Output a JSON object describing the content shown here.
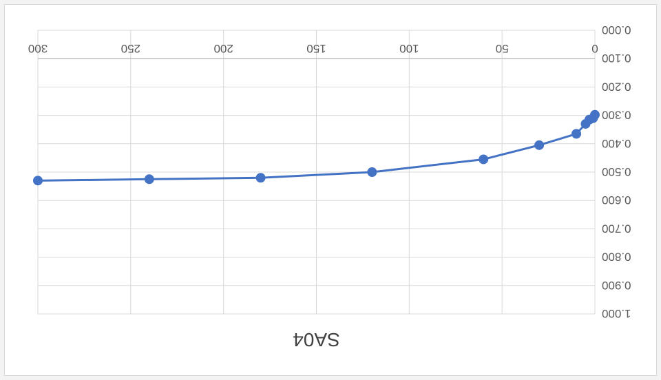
{
  "chart_data": {
    "type": "line",
    "title": "SA04",
    "orientation": "rotated-180",
    "x": [
      0,
      1,
      3,
      5,
      10,
      30,
      60,
      120,
      180,
      240,
      300
    ],
    "series": [
      {
        "values": [
          0.298,
          0.31,
          0.315,
          0.33,
          0.365,
          0.405,
          0.455,
          0.5,
          0.52,
          0.525,
          0.53
        ]
      }
    ],
    "xlim": [
      0,
      300
    ],
    "ylim": [
      0,
      1
    ],
    "x_ticks": [
      0,
      50,
      100,
      150,
      200,
      250,
      300
    ],
    "x_tick_labels": [
      "0",
      "50",
      "100",
      "150",
      "200",
      "250",
      "300"
    ],
    "y_ticks": [
      0,
      0.1,
      0.2,
      0.3,
      0.4,
      0.5,
      0.6,
      0.7,
      0.8,
      0.9,
      1.0
    ],
    "y_tick_labels": [
      "0.000",
      "0.100",
      "0.200",
      "0.300",
      "0.400",
      "0.500",
      "0.600",
      "0.700",
      "0.800",
      "0.900",
      "1.000"
    ],
    "grid": true,
    "colors": {
      "series": "#4472c4",
      "grid": "#d9d9d9",
      "text": "#595959"
    }
  }
}
